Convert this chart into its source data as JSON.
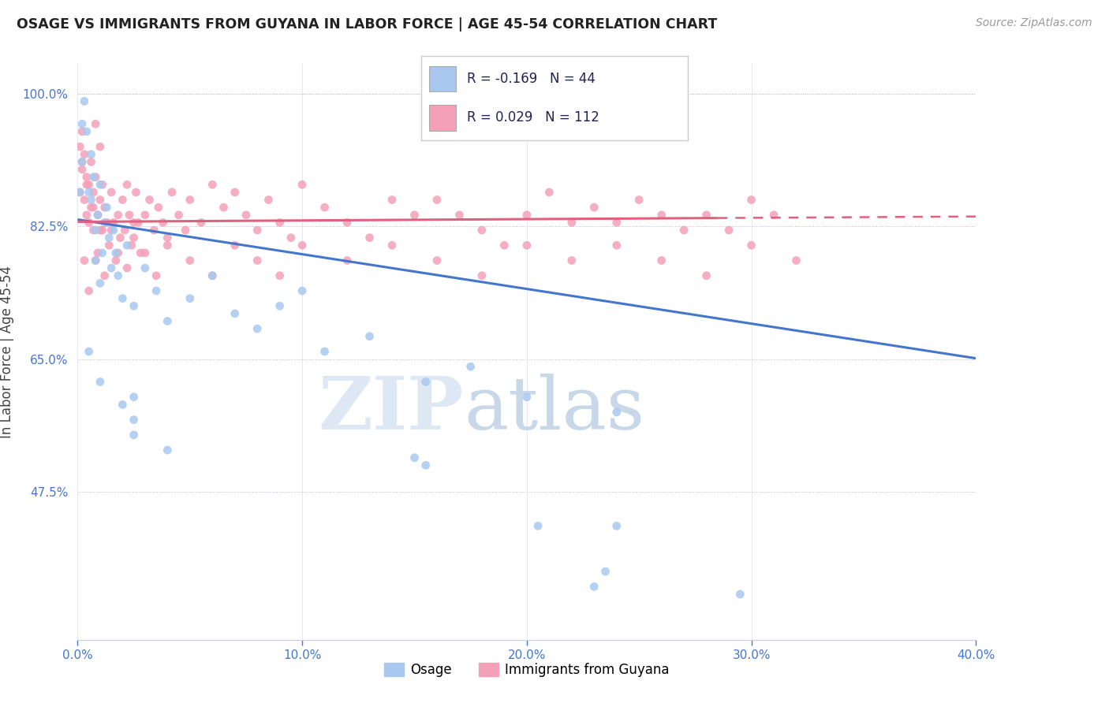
{
  "title": "OSAGE VS IMMIGRANTS FROM GUYANA IN LABOR FORCE | AGE 45-54 CORRELATION CHART",
  "source": "Source: ZipAtlas.com",
  "ylabel": "In Labor Force | Age 45-54",
  "xmin": 0.0,
  "xmax": 0.4,
  "ymin": 0.28,
  "ymax": 1.04,
  "yticks": [
    0.475,
    0.65,
    0.825,
    1.0
  ],
  "ytick_labels": [
    "47.5%",
    "65.0%",
    "82.5%",
    "100.0%"
  ],
  "xticks": [
    0.0,
    0.1,
    0.2,
    0.3,
    0.4
  ],
  "xtick_labels": [
    "0.0%",
    "10.0%",
    "20.0%",
    "30.0%",
    "40.0%"
  ],
  "legend_r_osage": "-0.169",
  "legend_n_osage": "44",
  "legend_r_guyana": "0.029",
  "legend_n_guyana": "112",
  "osage_color": "#a8c8f0",
  "guyana_color": "#f4a0b8",
  "osage_line_color": "#4477cc",
  "guyana_line_color": "#e06080",
  "osage_line_y0": 0.834,
  "osage_line_y1": 0.651,
  "guyana_line_y0": 0.831,
  "guyana_line_y1": 0.838,
  "guyana_line_solid_x": 0.285,
  "watermark_zip": "ZIP",
  "watermark_atlas": "atlas",
  "osage_x": [
    0.001,
    0.002,
    0.002,
    0.003,
    0.004,
    0.005,
    0.006,
    0.006,
    0.007,
    0.008,
    0.008,
    0.009,
    0.01,
    0.01,
    0.011,
    0.012,
    0.013,
    0.014,
    0.015,
    0.016,
    0.017,
    0.018,
    0.02,
    0.022,
    0.025,
    0.03,
    0.035,
    0.04,
    0.05,
    0.06,
    0.07,
    0.08,
    0.09,
    0.1,
    0.11,
    0.13,
    0.155,
    0.175,
    0.2,
    0.24,
    0.02,
    0.025,
    0.15,
    0.23
  ],
  "osage_y": [
    0.87,
    0.91,
    0.96,
    0.99,
    0.95,
    0.87,
    0.86,
    0.92,
    0.89,
    0.82,
    0.78,
    0.84,
    0.88,
    0.75,
    0.79,
    0.83,
    0.85,
    0.81,
    0.77,
    0.82,
    0.79,
    0.76,
    0.73,
    0.8,
    0.72,
    0.77,
    0.74,
    0.7,
    0.73,
    0.76,
    0.71,
    0.69,
    0.72,
    0.74,
    0.66,
    0.68,
    0.62,
    0.64,
    0.6,
    0.58,
    0.59,
    0.55,
    0.52,
    0.35
  ],
  "osage_outlier_x": [
    0.005,
    0.01,
    0.025,
    0.025,
    0.04,
    0.155,
    0.205,
    0.235,
    0.24,
    0.295
  ],
  "osage_outlier_y": [
    0.66,
    0.62,
    0.6,
    0.57,
    0.53,
    0.51,
    0.43,
    0.37,
    0.43,
    0.34
  ],
  "guyana_x": [
    0.001,
    0.001,
    0.002,
    0.002,
    0.003,
    0.003,
    0.004,
    0.004,
    0.005,
    0.005,
    0.006,
    0.006,
    0.007,
    0.007,
    0.008,
    0.008,
    0.009,
    0.009,
    0.01,
    0.01,
    0.011,
    0.011,
    0.012,
    0.013,
    0.014,
    0.015,
    0.016,
    0.017,
    0.018,
    0.019,
    0.02,
    0.021,
    0.022,
    0.023,
    0.024,
    0.025,
    0.026,
    0.027,
    0.028,
    0.03,
    0.032,
    0.034,
    0.036,
    0.038,
    0.04,
    0.042,
    0.045,
    0.048,
    0.05,
    0.055,
    0.06,
    0.065,
    0.07,
    0.075,
    0.08,
    0.085,
    0.09,
    0.095,
    0.1,
    0.11,
    0.12,
    0.13,
    0.14,
    0.15,
    0.16,
    0.17,
    0.18,
    0.19,
    0.2,
    0.21,
    0.22,
    0.23,
    0.24,
    0.25,
    0.26,
    0.27,
    0.28,
    0.29,
    0.3,
    0.31,
    0.003,
    0.005,
    0.008,
    0.012,
    0.015,
    0.018,
    0.022,
    0.025,
    0.03,
    0.035,
    0.04,
    0.05,
    0.06,
    0.07,
    0.08,
    0.09,
    0.1,
    0.12,
    0.14,
    0.16,
    0.18,
    0.2,
    0.22,
    0.24,
    0.26,
    0.28,
    0.3,
    0.32,
    0.002,
    0.004,
    0.007,
    0.01
  ],
  "guyana_y": [
    0.87,
    0.93,
    0.9,
    0.95,
    0.86,
    0.92,
    0.89,
    0.84,
    0.88,
    0.83,
    0.85,
    0.91,
    0.87,
    0.82,
    0.96,
    0.89,
    0.84,
    0.79,
    0.93,
    0.86,
    0.88,
    0.82,
    0.85,
    0.83,
    0.8,
    0.87,
    0.83,
    0.78,
    0.84,
    0.81,
    0.86,
    0.82,
    0.88,
    0.84,
    0.8,
    0.83,
    0.87,
    0.83,
    0.79,
    0.84,
    0.86,
    0.82,
    0.85,
    0.83,
    0.81,
    0.87,
    0.84,
    0.82,
    0.86,
    0.83,
    0.88,
    0.85,
    0.87,
    0.84,
    0.82,
    0.86,
    0.83,
    0.81,
    0.88,
    0.85,
    0.83,
    0.81,
    0.86,
    0.84,
    0.86,
    0.84,
    0.82,
    0.8,
    0.84,
    0.87,
    0.83,
    0.85,
    0.83,
    0.86,
    0.84,
    0.82,
    0.84,
    0.82,
    0.86,
    0.84,
    0.78,
    0.74,
    0.78,
    0.76,
    0.82,
    0.79,
    0.77,
    0.81,
    0.79,
    0.76,
    0.8,
    0.78,
    0.76,
    0.8,
    0.78,
    0.76,
    0.8,
    0.78,
    0.8,
    0.78,
    0.76,
    0.8,
    0.78,
    0.8,
    0.78,
    0.76,
    0.8,
    0.78,
    0.91,
    0.88,
    0.85,
    0.82
  ]
}
